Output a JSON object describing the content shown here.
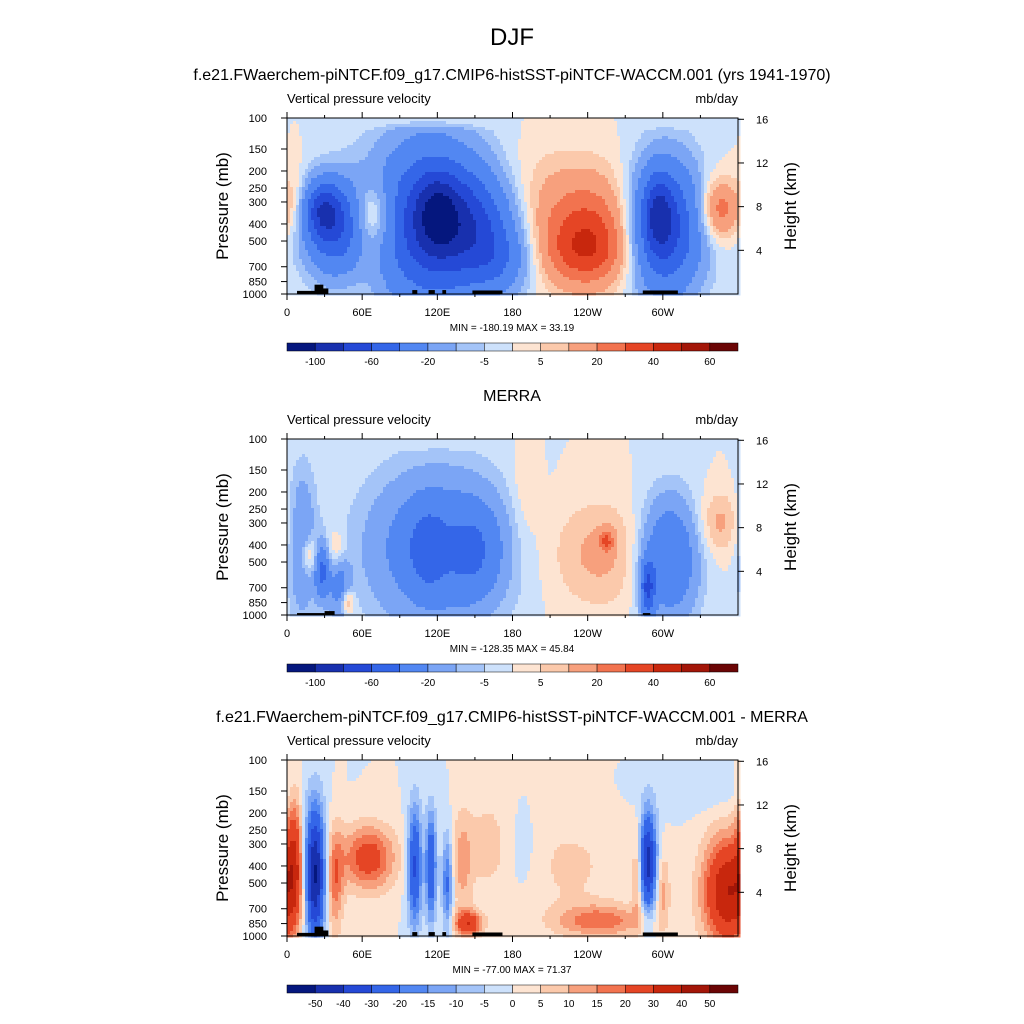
{
  "figure": {
    "title": "DJF"
  },
  "colors": {
    "scale_abs": [
      "#05177e",
      "#1830ae",
      "#2549d6",
      "#3466e8",
      "#5287f2",
      "#7ba5f5",
      "#a4c4f8",
      "#cde1fb",
      "#fde4d2",
      "#fbc9ab",
      "#f7a07d",
      "#f2734f",
      "#e54525",
      "#c8270d",
      "#a31608",
      "#6b0505"
    ],
    "scale_diff": [
      "#05177e",
      "#1830ae",
      "#2549d6",
      "#3466e8",
      "#5287f2",
      "#7ba5f5",
      "#a4c4f8",
      "#cde1fb",
      "#fde4d2",
      "#fbc9ab",
      "#f7a07d",
      "#f2734f",
      "#e54525",
      "#c8270d",
      "#a31608",
      "#6b0505"
    ],
    "topography": "#000000"
  },
  "chart_data": [
    {
      "type": "heatmap",
      "title": "f.e21.FWaerchem-piNTCF.f09_g17.CMIP6-histSST-piNTCF-WACCM.001 (yrs 1941-1970)",
      "left_label": "Vertical pressure velocity",
      "right_label": "mb/day",
      "ylabel": "Pressure (mb)",
      "y2label": "Height (km)",
      "x_ticks": [
        "0",
        "60E",
        "120E",
        "180",
        "120W",
        "60W"
      ],
      "x_tick_lon": [
        0,
        60,
        120,
        180,
        240,
        300
      ],
      "xlim": [
        0,
        360
      ],
      "y_ticks": [
        "100",
        "150",
        "200",
        "250",
        "300",
        "400",
        "500",
        "700",
        "850",
        "1000"
      ],
      "y_tick_p": [
        100,
        150,
        200,
        250,
        300,
        400,
        500,
        700,
        850,
        1000
      ],
      "ylim": [
        1000,
        100
      ],
      "y2_ticks": [
        "4",
        "8",
        "12",
        "16"
      ],
      "y2_tick_km": [
        4,
        8,
        12,
        16
      ],
      "minmax_text": "MIN = -180.19  MAX =  33.19",
      "colorbar_labels": [
        "-100",
        "-60",
        "-20",
        "-5",
        "5",
        "20",
        "40",
        "60"
      ],
      "colorbar_label_index": [
        1,
        3,
        5,
        7,
        9,
        11,
        13,
        15
      ],
      "field": [
        {
          "lon": 40,
          "p": 420,
          "sx": 18,
          "sy": 0.42,
          "v": -60
        },
        {
          "lon": 28,
          "p": 330,
          "sx": 10,
          "sy": 0.25,
          "v": -45
        },
        {
          "lon": 112,
          "p": 400,
          "sx": 30,
          "sy": 0.75,
          "v": -70
        },
        {
          "lon": 120,
          "p": 350,
          "sx": 12,
          "sy": 0.35,
          "v": -40
        },
        {
          "lon": 150,
          "p": 400,
          "sx": 22,
          "sy": 0.5,
          "v": -45
        },
        {
          "lon": 170,
          "p": 650,
          "sx": 18,
          "sy": 0.32,
          "v": -25
        },
        {
          "lon": 302,
          "p": 420,
          "sx": 20,
          "sy": 0.6,
          "v": -70
        },
        {
          "lon": 296,
          "p": 350,
          "sx": 8,
          "sy": 0.35,
          "v": -40
        },
        {
          "lon": 240,
          "p": 450,
          "sx": 30,
          "sy": 0.45,
          "v": 32
        },
        {
          "lon": 238,
          "p": 620,
          "sx": 24,
          "sy": 0.3,
          "v": 15
        },
        {
          "lon": 68,
          "p": 360,
          "sx": 12,
          "sy": 0.3,
          "v": 30
        },
        {
          "lon": 62,
          "p": 520,
          "sx": 14,
          "sy": 0.45,
          "v": 12
        },
        {
          "lon": 345,
          "p": 330,
          "sx": 12,
          "sy": 0.28,
          "v": 28
        },
        {
          "lon": 8,
          "p": 300,
          "sx": 6,
          "sy": 0.35,
          "v": 8
        },
        {
          "lon": 210,
          "p": 230,
          "sx": 55,
          "sy": 0.4,
          "v": 6
        }
      ],
      "topography": [
        {
          "lon_start": 8,
          "lon_end": 32,
          "p_top": 960
        },
        {
          "lon_start": 22,
          "lon_end": 29,
          "p_top": 885
        },
        {
          "lon_start": 28,
          "lon_end": 33,
          "p_top": 930
        },
        {
          "lon_start": 100,
          "lon_end": 104,
          "p_top": 950
        },
        {
          "lon_start": 113,
          "lon_end": 118,
          "p_top": 950
        },
        {
          "lon_start": 124,
          "lon_end": 127,
          "p_top": 950
        },
        {
          "lon_start": 148,
          "lon_end": 172,
          "p_top": 955
        },
        {
          "lon_start": 284,
          "lon_end": 312,
          "p_top": 955
        }
      ]
    },
    {
      "type": "heatmap",
      "title": "MERRA",
      "left_label": "Vertical pressure velocity",
      "right_label": "mb/day",
      "ylabel": "Pressure (mb)",
      "y2label": "Height (km)",
      "x_ticks": [
        "0",
        "60E",
        "120E",
        "180",
        "120W",
        "60W"
      ],
      "x_tick_lon": [
        0,
        60,
        120,
        180,
        240,
        300
      ],
      "xlim": [
        0,
        360
      ],
      "y_ticks": [
        "100",
        "150",
        "200",
        "250",
        "300",
        "400",
        "500",
        "700",
        "850",
        "1000"
      ],
      "y_tick_p": [
        100,
        150,
        200,
        250,
        300,
        400,
        500,
        700,
        850,
        1000
      ],
      "ylim": [
        1000,
        100
      ],
      "y2_ticks": [
        "4",
        "8",
        "12",
        "16"
      ],
      "y2_tick_km": [
        4,
        8,
        12,
        16
      ],
      "minmax_text": "MIN = -128.35  MAX =  45.84",
      "colorbar_labels": [
        "-100",
        "-60",
        "-20",
        "-5",
        "5",
        "20",
        "40",
        "60"
      ],
      "colorbar_label_index": [
        1,
        3,
        5,
        7,
        9,
        11,
        13,
        15
      ],
      "field": [
        {
          "lon": 120,
          "p": 420,
          "sx": 38,
          "sy": 0.7,
          "v": -35
        },
        {
          "lon": 112,
          "p": 420,
          "sx": 10,
          "sy": 0.35,
          "v": -25
        },
        {
          "lon": 150,
          "p": 430,
          "sx": 14,
          "sy": 0.4,
          "v": -22
        },
        {
          "lon": 305,
          "p": 480,
          "sx": 16,
          "sy": 0.55,
          "v": -40
        },
        {
          "lon": 288,
          "p": 700,
          "sx": 4,
          "sy": 0.25,
          "v": -55
        },
        {
          "lon": 12,
          "p": 400,
          "sx": 8,
          "sy": 0.7,
          "v": -20
        },
        {
          "lon": 28,
          "p": 560,
          "sx": 4,
          "sy": 0.25,
          "v": -45
        },
        {
          "lon": 42,
          "p": 700,
          "sx": 6,
          "sy": 0.35,
          "v": -25
        },
        {
          "lon": 18,
          "p": 460,
          "sx": 6,
          "sy": 0.18,
          "v": 18
        },
        {
          "lon": 40,
          "p": 430,
          "sx": 6,
          "sy": 0.2,
          "v": 14
        },
        {
          "lon": 48,
          "p": 850,
          "sx": 4,
          "sy": 0.12,
          "v": 22
        },
        {
          "lon": 250,
          "p": 450,
          "sx": 30,
          "sy": 0.5,
          "v": 12
        },
        {
          "lon": 255,
          "p": 380,
          "sx": 4,
          "sy": 0.1,
          "v": 24
        },
        {
          "lon": 345,
          "p": 300,
          "sx": 12,
          "sy": 0.3,
          "v": 12
        },
        {
          "lon": 190,
          "p": 200,
          "sx": 8,
          "sy": 0.5,
          "v": 6
        }
      ],
      "topography": [
        {
          "lon_start": 8,
          "lon_end": 30,
          "p_top": 975
        },
        {
          "lon_start": 30,
          "lon_end": 38,
          "p_top": 950
        },
        {
          "lon_start": 284,
          "lon_end": 290,
          "p_top": 975
        }
      ]
    },
    {
      "type": "heatmap",
      "title": "f.e21.FWaerchem-piNTCF.f09_g17.CMIP6-histSST-piNTCF-WACCM.001 - MERRA",
      "left_label": "Vertical pressure velocity",
      "right_label": "mb/day",
      "ylabel": "Pressure (mb)",
      "y2label": "Height (km)",
      "x_ticks": [
        "0",
        "60E",
        "120E",
        "180",
        "120W",
        "60W"
      ],
      "x_tick_lon": [
        0,
        60,
        120,
        180,
        240,
        300
      ],
      "xlim": [
        0,
        360
      ],
      "y_ticks": [
        "100",
        "150",
        "200",
        "250",
        "300",
        "400",
        "500",
        "700",
        "850",
        "1000"
      ],
      "y_tick_p": [
        100,
        150,
        200,
        250,
        300,
        400,
        500,
        700,
        850,
        1000
      ],
      "ylim": [
        1000,
        100
      ],
      "y2_ticks": [
        "4",
        "8",
        "12",
        "16"
      ],
      "y2_tick_km": [
        4,
        8,
        12,
        16
      ],
      "minmax_text": "MIN = -77.00  MAX =  71.37",
      "colorbar_labels": [
        "-50",
        "-40",
        "-30",
        "-20",
        "-15",
        "-10",
        "-5",
        "0",
        "5",
        "10",
        "15",
        "20",
        "30",
        "40",
        "50"
      ],
      "colorbar_label_index": [
        1,
        2,
        3,
        4,
        5,
        6,
        7,
        8,
        9,
        10,
        11,
        12,
        13,
        14,
        15
      ],
      "field": [
        {
          "lon": 22,
          "p": 450,
          "sx": 6,
          "sy": 0.6,
          "v": -55
        },
        {
          "lon": 6,
          "p": 320,
          "sx": 5,
          "sy": 0.55,
          "v": 22
        },
        {
          "lon": 38,
          "p": 480,
          "sx": 5,
          "sy": 0.5,
          "v": 18
        },
        {
          "lon": 65,
          "p": 360,
          "sx": 15,
          "sy": 0.3,
          "v": 25
        },
        {
          "lon": 102,
          "p": 400,
          "sx": 4,
          "sy": 0.55,
          "v": -32
        },
        {
          "lon": 115,
          "p": 400,
          "sx": 3,
          "sy": 0.5,
          "v": -30
        },
        {
          "lon": 128,
          "p": 500,
          "sx": 3,
          "sy": 0.45,
          "v": -22
        },
        {
          "lon": 140,
          "p": 380,
          "sx": 6,
          "sy": 0.5,
          "v": 12
        },
        {
          "lon": 160,
          "p": 300,
          "sx": 10,
          "sy": 0.4,
          "v": 8
        },
        {
          "lon": 288,
          "p": 380,
          "sx": 5,
          "sy": 0.45,
          "v": -45
        },
        {
          "lon": 280,
          "p": 450,
          "sx": 3,
          "sy": 0.45,
          "v": 15
        },
        {
          "lon": 300,
          "p": 550,
          "sx": 4,
          "sy": 0.35,
          "v": 12
        },
        {
          "lon": 352,
          "p": 560,
          "sx": 14,
          "sy": 0.5,
          "v": 40
        },
        {
          "lon": 250,
          "p": 820,
          "sx": 25,
          "sy": 0.15,
          "v": 18
        },
        {
          "lon": 145,
          "p": 850,
          "sx": 8,
          "sy": 0.12,
          "v": 28
        },
        {
          "lon": 225,
          "p": 400,
          "sx": 30,
          "sy": 0.5,
          "v": 6
        },
        {
          "lon": 330,
          "p": 150,
          "sx": 30,
          "sy": 0.2,
          "v": -4
        },
        {
          "lon": 190,
          "p": 350,
          "sx": 10,
          "sy": 0.4,
          "v": -4
        }
      ],
      "topography": [
        {
          "lon_start": 8,
          "lon_end": 32,
          "p_top": 960
        },
        {
          "lon_start": 22,
          "lon_end": 29,
          "p_top": 885
        },
        {
          "lon_start": 28,
          "lon_end": 33,
          "p_top": 930
        },
        {
          "lon_start": 100,
          "lon_end": 104,
          "p_top": 950
        },
        {
          "lon_start": 113,
          "lon_end": 118,
          "p_top": 950
        },
        {
          "lon_start": 124,
          "lon_end": 127,
          "p_top": 950
        },
        {
          "lon_start": 148,
          "lon_end": 172,
          "p_top": 955
        },
        {
          "lon_start": 284,
          "lon_end": 312,
          "p_top": 955
        }
      ]
    }
  ]
}
